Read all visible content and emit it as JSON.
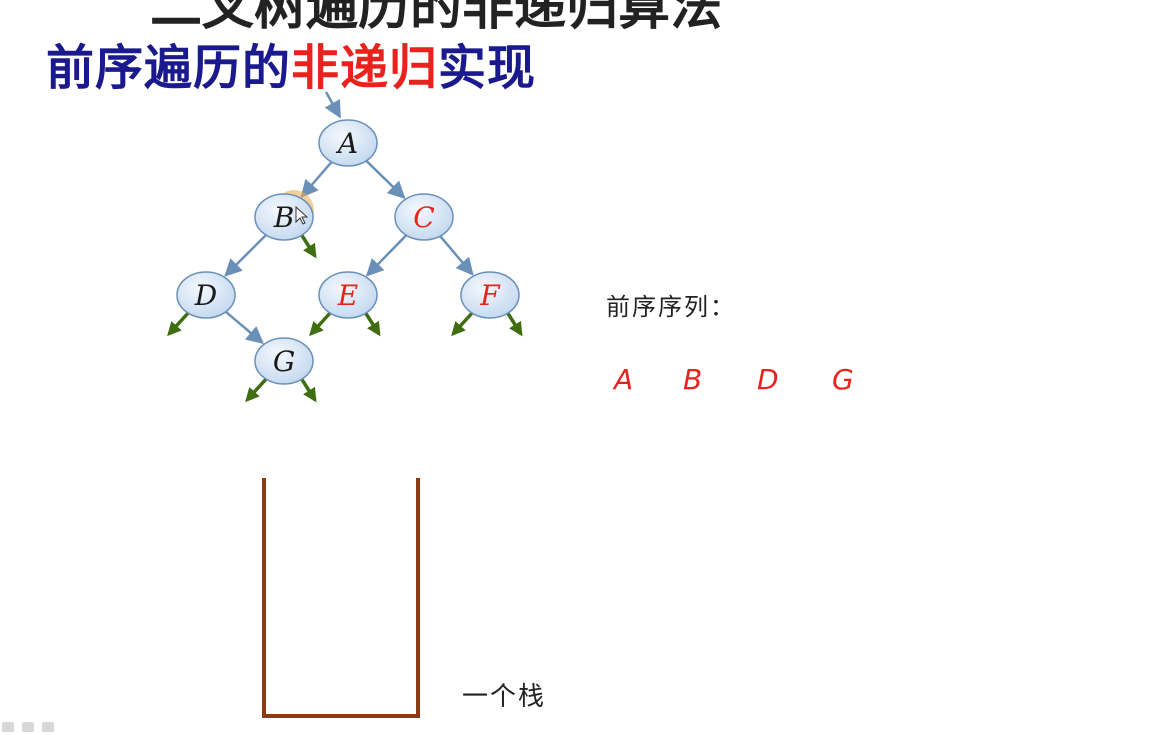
{
  "header": {
    "cut_title": "二叉树遍历的非递归算法",
    "title_prefix": "前序遍历的",
    "title_highlight": "非递归",
    "title_suffix": "实现"
  },
  "tree": {
    "nodes": [
      {
        "id": "A",
        "label": "A",
        "color": "#1a1a1a"
      },
      {
        "id": "B",
        "label": "B",
        "color": "#1a1a1a"
      },
      {
        "id": "C",
        "label": "C",
        "color": "#e8221d"
      },
      {
        "id": "D",
        "label": "D",
        "color": "#1a1a1a"
      },
      {
        "id": "E",
        "label": "E",
        "color": "#e8221d"
      },
      {
        "id": "F",
        "label": "F",
        "color": "#e8221d"
      },
      {
        "id": "G",
        "label": "G",
        "color": "#1a1a1a"
      }
    ],
    "edges": [
      [
        "A",
        "B"
      ],
      [
        "A",
        "C"
      ],
      [
        "B",
        "D"
      ],
      [
        "C",
        "E"
      ],
      [
        "C",
        "F"
      ],
      [
        "D",
        "G"
      ]
    ],
    "node_fill": "#dce9f7",
    "edge_color": "#6a90b8",
    "null_arrow_color": "#3f6e12",
    "highlight_color": "#e8a948"
  },
  "sequence": {
    "label": "前序序列：",
    "items": [
      "A",
      "B",
      "D",
      "G"
    ]
  },
  "stack": {
    "label": "一个栈",
    "color": "#8b3a13"
  }
}
